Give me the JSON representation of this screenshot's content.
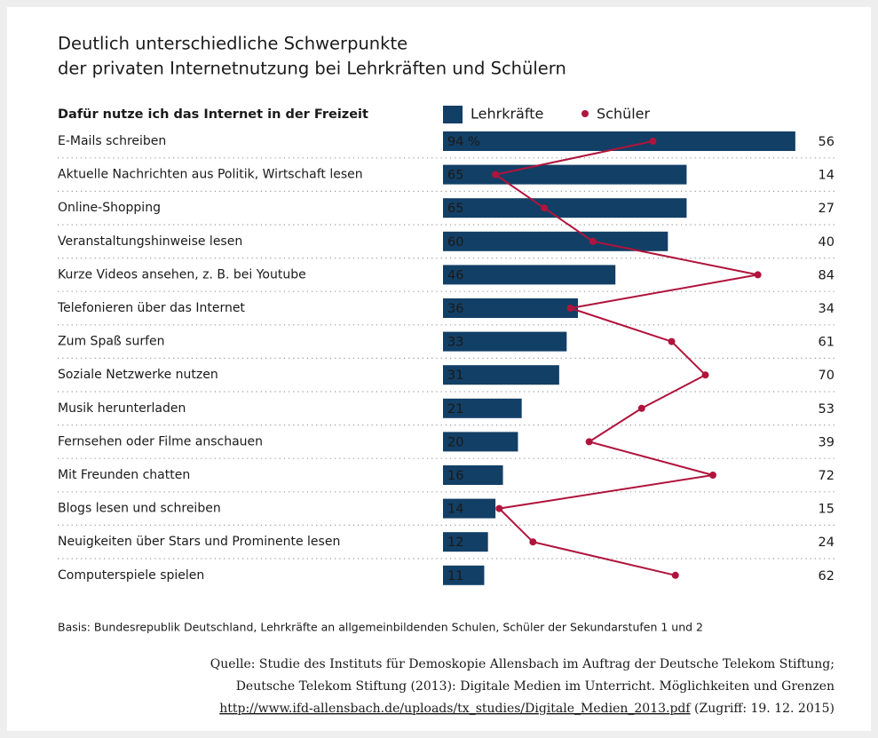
{
  "chart_data": {
    "type": "bar_line",
    "title": [
      "Deutlich unterschiedliche Schwerpunkte",
      "der privaten Internetnutzung bei Lehrkräften und Schülern"
    ],
    "subtitle": "Dafür nutze ich das Internet in der Freizeit",
    "categories": [
      "E-Mails schreiben",
      "Aktuelle Nachrichten aus Politik, Wirtschaft lesen",
      "Online-Shopping",
      "Veranstaltungshinweise lesen",
      "Kurze Videos ansehen, z. B. bei Youtube",
      "Telefonieren über das Internet",
      "Zum Spaß surfen",
      "Soziale Netzwerke nutzen",
      "Musik herunterladen",
      "Fernsehen oder Filme anschauen",
      "Mit Freunden chatten",
      "Blogs lesen und schreiben",
      "Neuigkeiten über Stars und Prominente lesen",
      "Computerspiele spielen"
    ],
    "series": [
      {
        "name": "Lehrkräfte",
        "type": "bar",
        "color": "#123f66",
        "values": [
          94,
          65,
          65,
          60,
          46,
          36,
          33,
          31,
          21,
          20,
          16,
          14,
          12,
          11
        ],
        "value_labels": [
          "94 %",
          "65",
          "65",
          "60",
          "46",
          "36",
          "33",
          "31",
          "21",
          "20",
          "16",
          "14",
          "12",
          "11"
        ]
      },
      {
        "name": "Schüler",
        "type": "line",
        "color": "#b0143c",
        "values": [
          56,
          14,
          27,
          40,
          84,
          34,
          61,
          70,
          53,
          39,
          72,
          15,
          24,
          62
        ]
      }
    ],
    "basis": "Basis: Bundesrepublik Deutschland, Lehrkräfte an allgemeinbildenden Schulen, Schüler der Sekundarstufen 1 und 2",
    "source": [
      "Quelle: Studie des Instituts für Demoskopie Allensbach im Auftrag der Deutsche Telekom Stiftung;",
      "Deutsche Telekom Stiftung (2013): Digitale Medien im Unterricht. Möglichkeiten und Grenzen"
    ],
    "source_link": "http://www.ifd-allensbach.de/uploads/tx_studies/Digitale_Medien_2013.pdf",
    "source_access": " (Zugriff: 19. 12. 2015)"
  }
}
